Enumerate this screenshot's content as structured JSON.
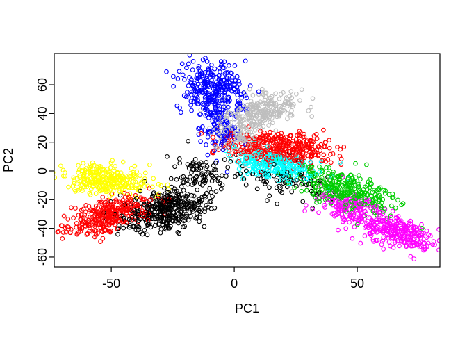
{
  "window": {
    "background": "#FFFFFF"
  },
  "chart_data": {
    "type": "scatter",
    "title": "",
    "xlabel": "PC1",
    "ylabel": "PC2",
    "xlim": [
      -73.2,
      83.6
    ],
    "ylim": [
      -66.8,
      81.8
    ],
    "x_ticks": [
      -50,
      0,
      50
    ],
    "y_ticks": [
      -60,
      -40,
      -20,
      0,
      20,
      40,
      60
    ],
    "y_tick_labels_rotated": true,
    "grid": false,
    "legend": "none",
    "marker": "open-circle",
    "marker_radius_px": 2.8,
    "marker_stroke_px": 1.1,
    "axis_color": "#000000",
    "seed": 20,
    "n_points_total": 3315,
    "clusters": [
      {
        "name": "blue-arm-upper",
        "color": "#0000FF",
        "n": 300,
        "cx": -8.5,
        "cy": 57.5,
        "sx": 6,
        "sy": 9,
        "angle_deg": 0
      },
      {
        "name": "blue-arm-tail",
        "color": "#0000FF",
        "n": 110,
        "cx": -5,
        "cy": 30,
        "sx": 4.5,
        "sy": 9,
        "angle_deg": 0
      },
      {
        "name": "gray-cluster",
        "color": "#BEBEBE",
        "n": 260,
        "cx": 10,
        "cy": 40,
        "sx": 9.5,
        "sy": 5.5,
        "angle_deg": 42
      },
      {
        "name": "gray-cluster-tail",
        "color": "#BEBEBE",
        "n": 70,
        "cx": 2,
        "cy": 19,
        "sx": 4,
        "sy": 7,
        "angle_deg": 20
      },
      {
        "name": "red-upper-cluster",
        "color": "#FF0000",
        "n": 380,
        "cx": 19,
        "cy": 16,
        "sx": 11,
        "sy": 5.5,
        "angle_deg": -12
      },
      {
        "name": "cyan-cluster",
        "color": "#00FFFF",
        "n": 270,
        "cx": 17,
        "cy": 4,
        "sx": 9,
        "sy": 5,
        "angle_deg": -25
      },
      {
        "name": "black-scatter-right",
        "color": "#000000",
        "n": 85,
        "cx": 18,
        "cy": -6,
        "sx": 13,
        "sy": 6,
        "angle_deg": -27
      },
      {
        "name": "green-cluster",
        "color": "#00CD00",
        "n": 330,
        "cx": 45,
        "cy": -13,
        "sx": 12,
        "sy": 5.5,
        "angle_deg": -33
      },
      {
        "name": "magenta-upper",
        "color": "#FF00FF",
        "n": 160,
        "cx": 47,
        "cy": -26,
        "sx": 8,
        "sy": 4.5,
        "angle_deg": -35
      },
      {
        "name": "magenta-lower",
        "color": "#FF00FF",
        "n": 260,
        "cx": 66,
        "cy": -43,
        "sx": 8.5,
        "sy": 5,
        "angle_deg": -30
      },
      {
        "name": "yellow-cluster",
        "color": "#FFFF00",
        "n": 300,
        "cx": -52,
        "cy": -6,
        "sx": 8.5,
        "sy": 5,
        "angle_deg": -12
      },
      {
        "name": "red-lower-cluster",
        "color": "#FF0000",
        "n": 330,
        "cx": -51,
        "cy": -31,
        "sx": 10,
        "sy": 5,
        "angle_deg": 28
      },
      {
        "name": "black-main-cluster",
        "color": "#000000",
        "n": 380,
        "cx": -28,
        "cy": -27,
        "sx": 9.5,
        "sy": 6.5,
        "angle_deg": 35
      },
      {
        "name": "black-center-trail",
        "color": "#000000",
        "n": 80,
        "cx": -14,
        "cy": -2,
        "sx": 5.5,
        "sy": 6.5,
        "angle_deg": 10
      }
    ]
  }
}
